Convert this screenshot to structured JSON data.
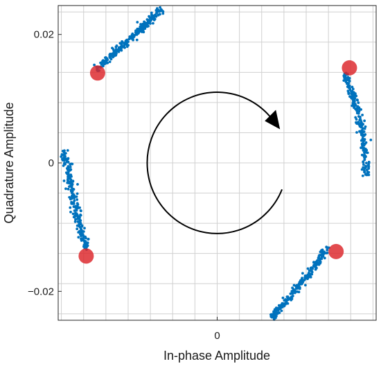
{
  "chart_data": {
    "type": "scatter",
    "title": "",
    "xlabel": "In-phase Amplitude",
    "ylabel": "Quadrature Amplitude",
    "xlim": [
      -0.025,
      0.025
    ],
    "ylim": [
      -0.0245,
      0.0245
    ],
    "x_ticks": [
      {
        "value": 0,
        "label": "0"
      }
    ],
    "y_ticks": [
      {
        "value": -0.02,
        "label": "−0.02"
      },
      {
        "value": 0,
        "label": "0"
      },
      {
        "value": 0.02,
        "label": "0.02"
      }
    ],
    "grid": true,
    "grid_x_step": 0.0035,
    "grid_y_step": 0.0047,
    "series": [
      {
        "kind": "trajectory",
        "color": "#0072bd",
        "clusters": [
          {
            "path": [
              [
                -0.019,
                0.0145
              ],
              [
                -0.014,
                0.019
              ],
              [
                -0.0087,
                0.024
              ]
            ]
          },
          {
            "path": [
              [
                0.02,
                0.014
              ],
              [
                0.0225,
                0.006
              ],
              [
                0.0235,
                -0.002
              ]
            ]
          },
          {
            "path": [
              [
                0.0175,
                -0.013
              ],
              [
                0.013,
                -0.019
              ],
              [
                0.0085,
                -0.024
              ]
            ]
          },
          {
            "path": [
              [
                -0.024,
                0.002
              ],
              [
                -0.0225,
                -0.006
              ],
              [
                -0.0205,
                -0.0135
              ]
            ]
          }
        ]
      },
      {
        "kind": "reference",
        "color": "#dc2328",
        "points": [
          [
            -0.0188,
            0.014
          ],
          [
            0.0208,
            0.0148
          ],
          [
            0.0187,
            -0.0138
          ],
          [
            -0.0206,
            -0.0145
          ]
        ]
      }
    ],
    "annotations": [
      {
        "type": "rotation-arrow",
        "direction": "clockwise",
        "center": [
          0,
          0
        ],
        "radius": 0.011
      }
    ]
  }
}
